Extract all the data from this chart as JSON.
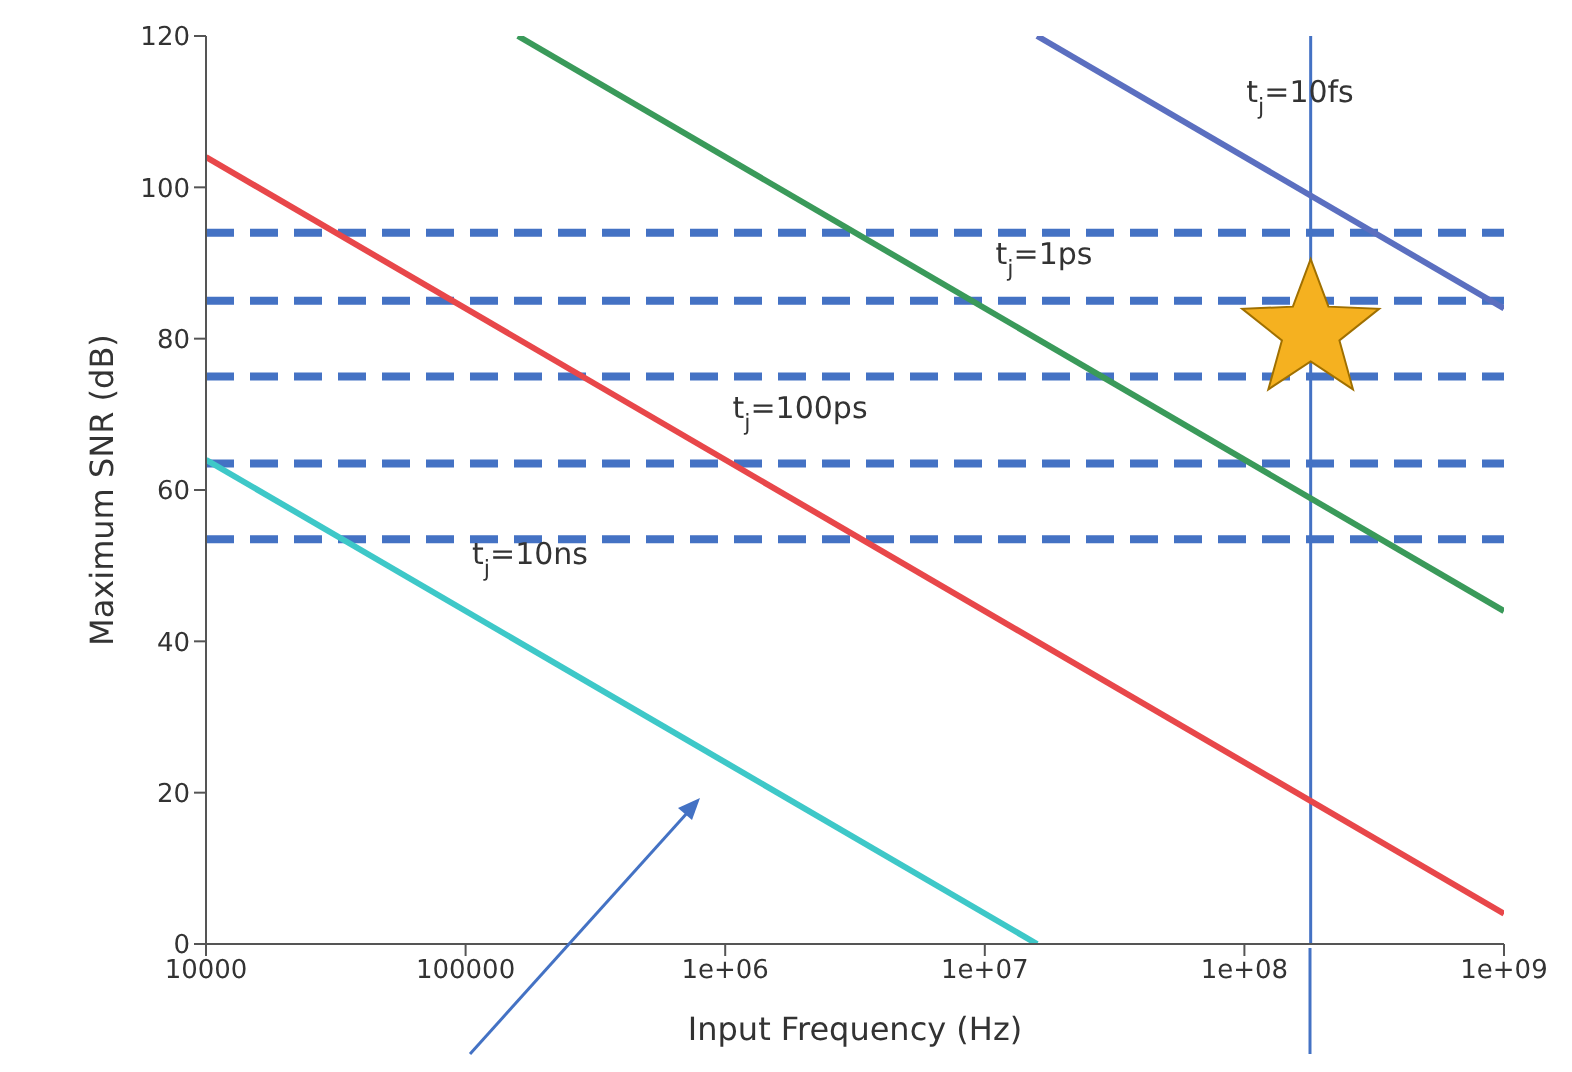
{
  "chart_data": {
    "type": "line",
    "xlabel": "Input Frequency (Hz)",
    "ylabel": "Maximum SNR (dB)",
    "log": "x",
    "xlim": [
      10000,
      1000000000
    ],
    "xticks": [
      10000,
      100000,
      {
        "value": 1000000,
        "label": "1e+06"
      },
      {
        "value": 10000000,
        "label": "1e+07"
      },
      {
        "value": 100000000,
        "label": "1e+08"
      },
      {
        "value": 1000000000,
        "label": "1e+09"
      }
    ],
    "ylim": [
      0,
      120
    ],
    "yticks": [
      0,
      20,
      40,
      60,
      80,
      100,
      120
    ],
    "grid": false,
    "legend": false,
    "marker": "none",
    "line_style": "solid",
    "series": [
      {
        "color": "#3ec8c8",
        "x": [
          10000,
          15900000
        ],
        "values": [
          64,
          0
        ]
      },
      {
        "color": "#e8474a",
        "x": [
          10000,
          1000000000
        ],
        "values": [
          104,
          4
        ]
      },
      {
        "color": "#3a9a5a",
        "x": [
          159000,
          1000000000
        ],
        "values": [
          120,
          44
        ]
      },
      {
        "color": "#5b6fc0",
        "x": [
          15900000,
          1000000000
        ],
        "values": [
          120,
          84
        ]
      },
      {
        "type": "scatter",
        "marker": "star",
        "color": "#f5b120",
        "x": [
          180000000
        ],
        "values": [
          81
        ]
      }
    ],
    "ref_lines": [
      {
        "axis": "y",
        "value": 94,
        "color": "#4472c4",
        "line_style": "dashed"
      },
      {
        "axis": "y",
        "value": 85,
        "color": "#4472c4",
        "line_style": "dashed"
      },
      {
        "axis": "y",
        "value": 75,
        "color": "#4472c4",
        "line_style": "dashed"
      },
      {
        "axis": "y",
        "value": 63.5,
        "color": "#4472c4",
        "line_style": "dashed"
      },
      {
        "axis": "y",
        "value": 53.5,
        "color": "#4472c4",
        "line_style": "dashed"
      },
      {
        "axis": "x",
        "value": 180000000,
        "color": "#4472c4",
        "line_style": "solid"
      }
    ],
    "annotations": [
      "t$_{j}$=10fs",
      "t$_{j}$=1ps",
      "t$_{j}$=100ps",
      "t$_{j}$=10ns"
    ]
  }
}
